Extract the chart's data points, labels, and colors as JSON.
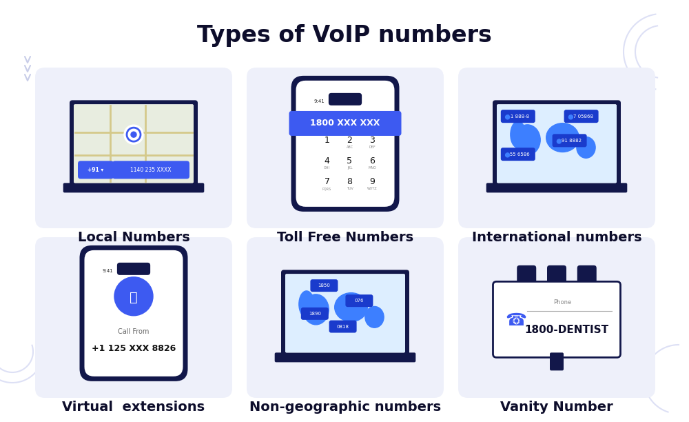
{
  "title": "Types of VoIP numbers",
  "title_fontsize": 24,
  "title_fontweight": "bold",
  "title_color": "#0d0d2b",
  "background_color": "#ffffff",
  "card_bg": "#eef0fa",
  "labels": [
    "Local Numbers",
    "Toll Free Numbers",
    "International numbers",
    "Virtual  extensions",
    "Non-geographic numbers",
    "Vanity Number"
  ],
  "label_fontsize": 14,
  "label_fontweight": "bold",
  "label_color": "#0d0d2b",
  "accent_blue": "#3d5af1",
  "dark_blue": "#12174a",
  "tag_blue": "#1a3bcc",
  "arrow_color": "#c8cde8",
  "map_bg_local": "#e8f0e8",
  "map_bg_intl": "#ddeeff",
  "phone_white": "#ffffff"
}
